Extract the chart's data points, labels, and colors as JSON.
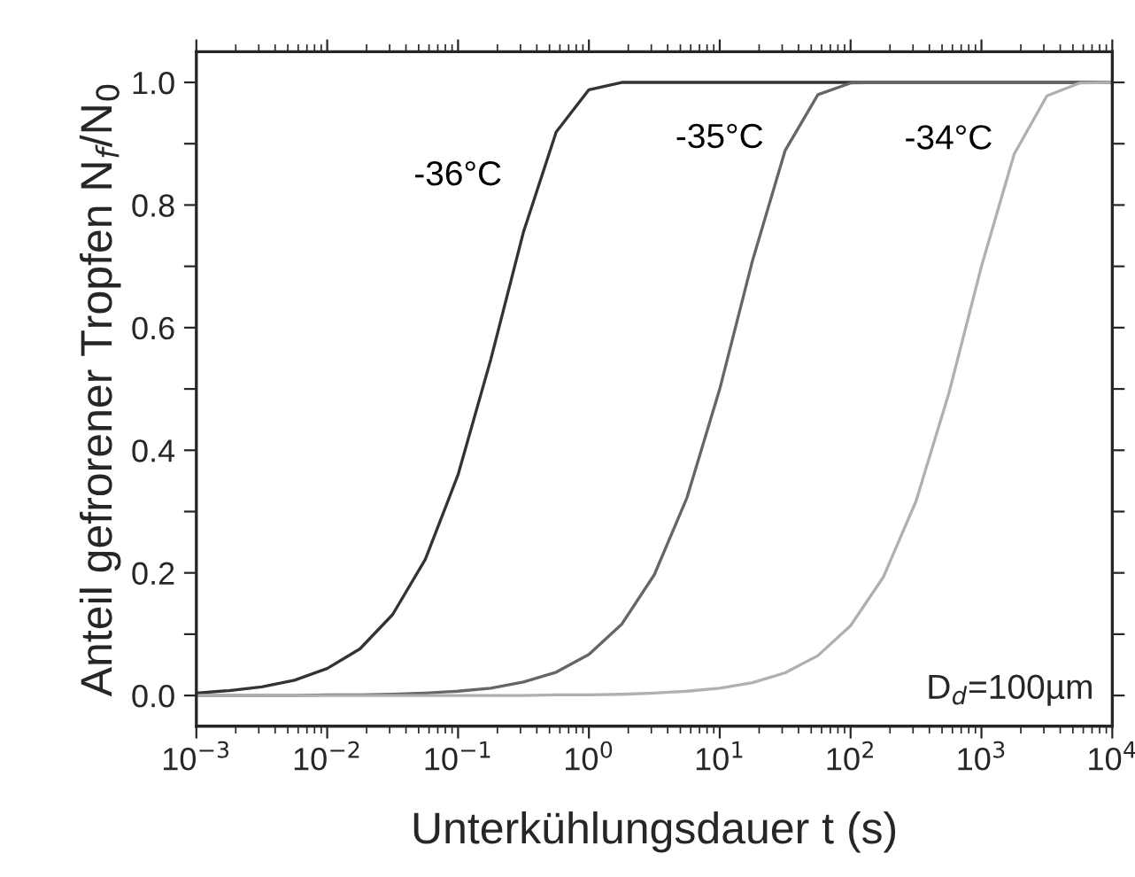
{
  "chart_data": {
    "type": "line",
    "xlabel": "Unterkühlungsdauer t (s)",
    "ylabel": "Anteil gefrorener Tropfen N$_{f}$/N$_{0}$",
    "annotations": [
      "D$_{d}$=100µm"
    ],
    "x": [
      0.001,
      0.001778,
      0.003162,
      0.005623,
      0.01,
      0.01778,
      0.03162,
      0.05623,
      0.1,
      0.1778,
      0.3162,
      0.5623,
      1,
      1.778,
      3.162,
      5.623,
      10,
      17.78,
      31.62,
      56.23,
      100,
      177.8,
      316.2,
      562.3,
      1000,
      1778,
      3162,
      5623,
      10000
    ],
    "series": [
      {
        "name": "-36°C",
        "color": "#333333",
        "values": [
          0.004,
          0.008,
          0.014,
          0.025,
          0.044,
          0.076,
          0.132,
          0.222,
          0.36,
          0.548,
          0.756,
          0.919,
          0.988,
          1.0,
          1.0,
          1.0,
          1.0,
          1.0,
          1.0,
          1.0,
          1.0,
          1.0,
          1.0,
          1.0,
          1.0,
          1.0,
          1.0,
          1.0,
          1.0
        ]
      },
      {
        "name": "-35°C",
        "color": "#666666",
        "values": [
          0.0,
          0.0,
          0.0,
          0.0,
          0.001,
          0.001,
          0.002,
          0.004,
          0.007,
          0.012,
          0.022,
          0.038,
          0.067,
          0.116,
          0.197,
          0.323,
          0.5,
          0.709,
          0.889,
          0.98,
          0.999,
          1.0,
          1.0,
          1.0,
          1.0,
          1.0,
          1.0,
          1.0,
          1.0
        ]
      },
      {
        "name": "-34°C",
        "color": "#b0b0b0",
        "values": [
          0.0,
          0.0,
          0.0,
          0.0,
          0.0,
          0.0,
          0.0,
          0.0,
          0.0,
          0.0,
          0.0,
          0.001,
          0.001,
          0.002,
          0.004,
          0.007,
          0.012,
          0.021,
          0.037,
          0.065,
          0.114,
          0.193,
          0.317,
          0.492,
          0.7,
          0.883,
          0.978,
          0.999,
          1.0
        ]
      }
    ],
    "log": "x",
    "xlim": [
      0.001,
      10000
    ],
    "xticks": [
      {
        "value": 0.001,
        "label": "10$^{−3}$"
      },
      {
        "value": 0.01,
        "label": "10$^{−2}$"
      },
      {
        "value": 0.1,
        "label": "10$^{−1}$"
      },
      {
        "value": 1,
        "label": "10$^{0}$"
      },
      {
        "value": 10,
        "label": "10$^{1}$"
      },
      {
        "value": 100,
        "label": "10$^{2}$"
      },
      {
        "value": 1000,
        "label": "10$^{3}$"
      },
      {
        "value": 10000,
        "label": "10$^{4}$"
      }
    ],
    "ylim": [
      -0.05,
      1.05
    ],
    "yticks": [
      {
        "value": 0,
        "label": "0.0"
      },
      {
        "value": 0.1,
        "label": null
      },
      {
        "value": 0.2,
        "label": "0.2"
      },
      {
        "value": 0.3,
        "label": null
      },
      {
        "value": 0.4,
        "label": "0.4"
      },
      {
        "value": 0.5,
        "label": null
      },
      {
        "value": 0.6,
        "label": "0.6"
      },
      {
        "value": 0.7,
        "label": null
      },
      {
        "value": 0.8,
        "label": "0.8"
      },
      {
        "value": 0.9,
        "label": null
      },
      {
        "value": 1,
        "label": "1.0"
      }
    ],
    "grid": false,
    "legend": false,
    "marker": "none",
    "line_style": "solid"
  }
}
